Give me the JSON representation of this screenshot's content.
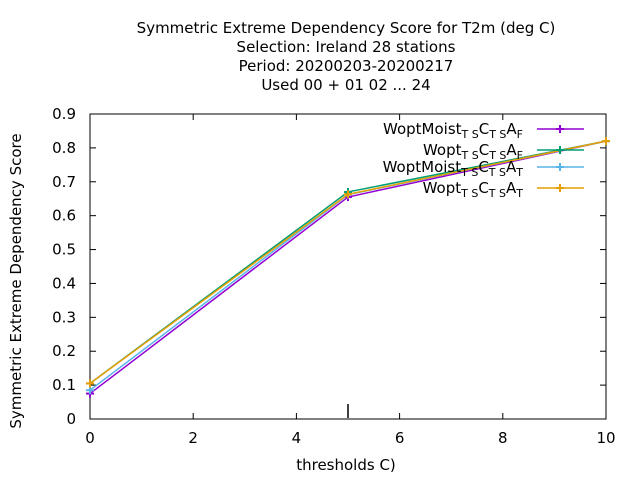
{
  "chart_data": {
    "type": "line",
    "title_lines": [
      "Symmetric Extreme Dependency Score  for T2m (deg C)",
      "Selection: Ireland     28 stations",
      "Period: 20200203-20200217",
      "Used  00 + 01 02 ... 24"
    ],
    "xlabel": "thresholds C)",
    "ylabel": "Symmetric Extreme Dependency Score",
    "xlim": [
      0,
      10
    ],
    "ylim": [
      0,
      0.9
    ],
    "xticks": [
      0,
      2,
      4,
      6,
      8,
      10
    ],
    "xtick_labels": [
      "0",
      "2",
      "4",
      "6",
      "8",
      "10"
    ],
    "yticks": [
      0,
      0.1,
      0.2,
      0.3,
      0.4,
      0.5,
      0.6,
      0.7,
      0.8,
      0.9
    ],
    "ytick_labels": [
      "0",
      "0.1",
      "0.2",
      "0.3",
      "0.4",
      "0.5",
      "0.6",
      "0.7",
      "0.8",
      "0.9"
    ],
    "grid": false,
    "legend_position": "top-right",
    "x": [
      0,
      5,
      10
    ],
    "series": [
      {
        "name": "WoptMoist",
        "sub1": "T S",
        "mid": "C",
        "sub2": "T S",
        "end": "A",
        "sub3": "F",
        "color": "#9400d3",
        "marker": "plus",
        "values": [
          0.075,
          0.655,
          0.82
        ]
      },
      {
        "name": "Wopt",
        "sub1": "T S",
        "mid": "C",
        "sub2": "T S",
        "end": "A",
        "sub3": "F",
        "color": "#009e73",
        "marker": "plus",
        "values": [
          0.105,
          0.67,
          0.82
        ]
      },
      {
        "name": "WoptMoist",
        "sub1": "T S",
        "mid": "C",
        "sub2": "T S",
        "end": "A",
        "sub3": "T",
        "color": "#56b4e9",
        "marker": "plus",
        "values": [
          0.085,
          0.662,
          0.82
        ]
      },
      {
        "name": "Wopt",
        "sub1": "T S",
        "mid": "C",
        "sub2": "T S",
        "end": "A",
        "sub3": "T",
        "color": "#e69f00",
        "marker": "plus",
        "values": [
          0.105,
          0.663,
          0.82
        ]
      }
    ],
    "markers_text": {
      "event_marker_x": 5
    }
  }
}
